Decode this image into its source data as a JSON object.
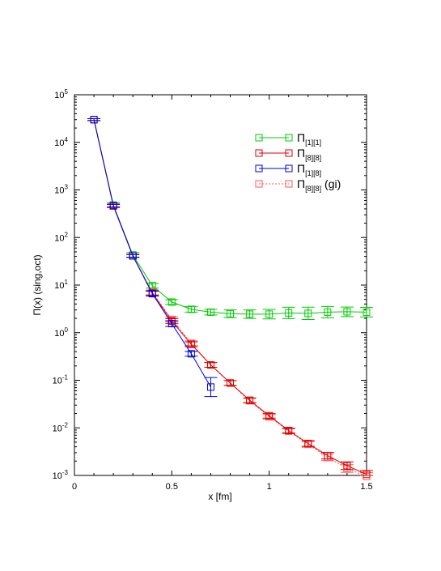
{
  "chart_data": {
    "type": "line",
    "title": "",
    "xlabel": "x [fm]",
    "ylabel": "Π(x) (sing,oct)",
    "xlim": [
      0,
      1.5
    ],
    "ylim": [
      0.001,
      100000
    ],
    "yscale": "log",
    "grid": false,
    "legend_position": "top-right",
    "x_ticks": [
      {
        "value": 0,
        "label": "0"
      },
      {
        "value": 0.5,
        "label": "0.5"
      },
      {
        "value": 1,
        "label": "1"
      },
      {
        "value": 1.5,
        "label": "1.5"
      }
    ],
    "y_ticks": [
      {
        "value": 0.001,
        "base": "10",
        "exp": "-3"
      },
      {
        "value": 0.01,
        "base": "10",
        "exp": "-2"
      },
      {
        "value": 0.1,
        "base": "10",
        "exp": "-1"
      },
      {
        "value": 1,
        "base": "10",
        "exp": "0"
      },
      {
        "value": 10,
        "base": "10",
        "exp": "1"
      },
      {
        "value": 100,
        "base": "10",
        "exp": "2"
      },
      {
        "value": 1000,
        "base": "10",
        "exp": "3"
      },
      {
        "value": 10000,
        "base": "10",
        "exp": "4"
      },
      {
        "value": 100000,
        "base": "10",
        "exp": "5"
      }
    ],
    "series": [
      {
        "name": "Π[1][1]",
        "legend_main": "Π",
        "legend_sub": "[1][1]",
        "legend_suffix": "",
        "color": "#00cc00",
        "dashed": false,
        "x": [
          0.1,
          0.2,
          0.3,
          0.4,
          0.5,
          0.6,
          0.7,
          0.8,
          0.9,
          1.0,
          1.1,
          1.2,
          1.3,
          1.4,
          1.5
        ],
        "y": [
          30000,
          480,
          43,
          9.7,
          4.4,
          3.1,
          2.7,
          2.5,
          2.45,
          2.45,
          2.6,
          2.55,
          2.7,
          2.75,
          2.7
        ],
        "err": [
          0.02,
          0.05,
          0.05,
          0.05,
          0.05,
          0.06,
          0.06,
          0.08,
          0.09,
          0.1,
          0.12,
          0.13,
          0.12,
          0.1,
          0.1
        ]
      },
      {
        "name": "Π[8][8]",
        "legend_main": "Π",
        "legend_sub": "[8][8]",
        "legend_suffix": "",
        "color": "#dd0000",
        "dashed": false,
        "x": [
          0.1,
          0.2,
          0.3,
          0.4,
          0.5,
          0.6,
          0.7,
          0.8,
          0.9,
          1.0,
          1.1,
          1.2,
          1.3,
          1.4,
          1.5
        ],
        "y": [
          30000,
          460,
          41,
          6.8,
          1.75,
          0.57,
          0.21,
          0.088,
          0.038,
          0.018,
          0.0088,
          0.0047,
          0.0026,
          0.0016,
          0.00105
        ],
        "err": [
          0.02,
          0.03,
          0.03,
          0.05,
          0.05,
          0.05,
          0.05,
          0.05,
          0.05,
          0.05,
          0.05,
          0.06,
          0.07,
          0.08,
          0.08
        ]
      },
      {
        "name": "Π[1][8]",
        "legend_main": "Π",
        "legend_sub": "[1][8]",
        "legend_suffix": "",
        "color": "#0000dd",
        "dashed": false,
        "x": [
          0.1,
          0.2,
          0.3,
          0.4,
          0.5,
          0.6,
          0.7
        ],
        "y": [
          30000,
          470,
          41,
          6.6,
          1.55,
          0.36,
          0.072
        ],
        "err": [
          0.02,
          0.03,
          0.03,
          0.05,
          0.06,
          0.05,
          0.2
        ]
      },
      {
        "name": "Π[8][8] (gi)",
        "legend_main": "Π",
        "legend_sub": "[8][8]",
        "legend_suffix": "(gi)",
        "color": "#ff5555",
        "dashed": true,
        "x": [
          0.1,
          0.2,
          0.3,
          0.4,
          0.5,
          0.6,
          0.7,
          0.8,
          0.9,
          1.0,
          1.1,
          1.2,
          1.3,
          1.4,
          1.5
        ],
        "y": [
          30000,
          460,
          41,
          7.0,
          1.9,
          0.6,
          0.21,
          0.087,
          0.037,
          0.017,
          0.0085,
          0.0045,
          0.0024,
          0.0014,
          0.00095
        ],
        "err": [
          0.02,
          0.03,
          0.03,
          0.05,
          0.05,
          0.05,
          0.05,
          0.05,
          0.05,
          0.05,
          0.05,
          0.06,
          0.07,
          0.08,
          0.08
        ]
      }
    ]
  }
}
